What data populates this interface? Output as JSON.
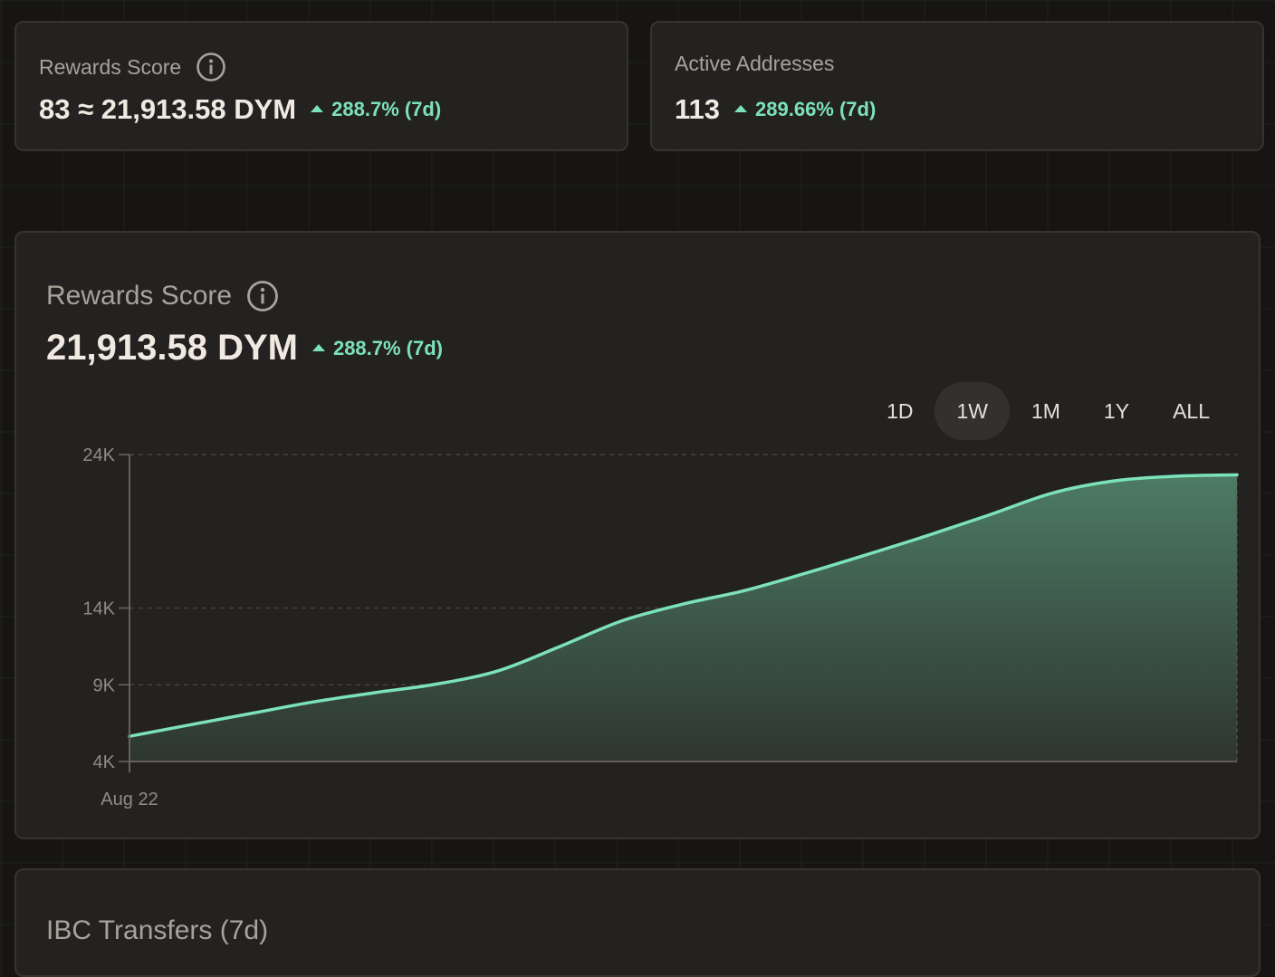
{
  "stats": [
    {
      "label": "Rewards Score",
      "value": "83 ≈ 21,913.58 DYM",
      "delta": "288.7% (7d)"
    },
    {
      "label": "Active Addresses",
      "value": "113",
      "delta": "289.66% (7d)"
    }
  ],
  "chart_card": {
    "title": "Rewards Score",
    "value": "21,913.58 DYM",
    "delta": "288.7% (7d)",
    "range_tabs": [
      {
        "label": "1D",
        "active": false
      },
      {
        "label": "1W",
        "active": true
      },
      {
        "label": "1M",
        "active": false
      },
      {
        "label": "1Y",
        "active": false
      },
      {
        "label": "ALL",
        "active": false
      }
    ]
  },
  "chart_data": {
    "type": "area",
    "title": "",
    "xlabel": "",
    "ylabel": "",
    "x_tick_labels": [
      "Aug 22"
    ],
    "y_ticks": [
      {
        "label": "24K",
        "value": 24000
      },
      {
        "label": "14K",
        "value": 14000
      },
      {
        "label": "9K",
        "value": 9000
      },
      {
        "label": "4K",
        "value": 4000
      }
    ],
    "ylim": [
      4000,
      24000
    ],
    "grid": "horizontal-dashed",
    "series": [
      {
        "values": [
          5640,
          6400,
          7150,
          7890,
          8490,
          9050,
          9920,
          11500,
          13160,
          14260,
          15140,
          16280,
          17500,
          18760,
          20100,
          21490,
          22280,
          22590,
          22680
        ]
      }
    ],
    "colors": {
      "line": "#7ce2b9",
      "fill_top": "#4d7b64",
      "fill_bottom": "#2e3531"
    }
  },
  "ibc_card": {
    "title": "IBC Transfers (7d)"
  }
}
